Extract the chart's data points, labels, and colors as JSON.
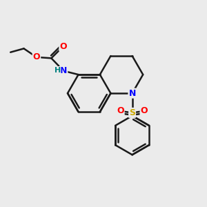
{
  "background_color": "#ebebeb",
  "bond_color": "#1a1a1a",
  "bond_width": 1.8,
  "atom_colors": {
    "N": "#0000ff",
    "O": "#ff0000",
    "S": "#ccaa00",
    "H": "#008080"
  },
  "figsize": [
    3.0,
    3.0
  ],
  "dpi": 100,
  "xlim": [
    0,
    10
  ],
  "ylim": [
    0,
    10
  ]
}
